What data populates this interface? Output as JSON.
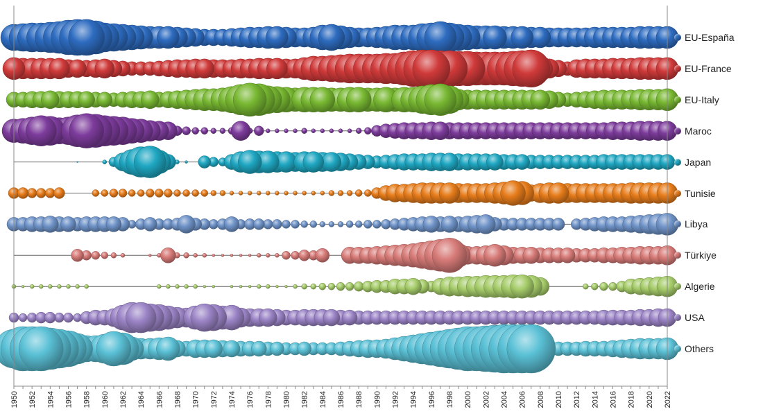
{
  "chart_data": {
    "type": "scatter",
    "subtype": "bubble-strip",
    "title": "",
    "xlabel": "",
    "ylabel": "",
    "xlim": [
      1950,
      2022
    ],
    "x_tick_labels": [
      "1950",
      "1952",
      "1954",
      "1956",
      "1958",
      "1960",
      "1962",
      "1964",
      "1966",
      "1968",
      "1970",
      "1972",
      "1974",
      "1976",
      "1978",
      "1980",
      "1982",
      "1984",
      "1986",
      "1988",
      "1990",
      "1992",
      "1994",
      "1996",
      "1998",
      "2000",
      "2002",
      "2004",
      "2006",
      "2008",
      "2010",
      "2012",
      "2014",
      "2016",
      "2018",
      "2020",
      "2022"
    ],
    "legend_position": "right",
    "grid": false,
    "years": [
      1950,
      1951,
      1952,
      1953,
      1954,
      1955,
      1956,
      1957,
      1958,
      1959,
      1960,
      1961,
      1962,
      1963,
      1964,
      1965,
      1966,
      1967,
      1968,
      1969,
      1970,
      1971,
      1972,
      1973,
      1974,
      1975,
      1976,
      1977,
      1978,
      1979,
      1980,
      1981,
      1982,
      1983,
      1984,
      1985,
      1986,
      1987,
      1988,
      1989,
      1990,
      1991,
      1992,
      1993,
      1994,
      1995,
      1996,
      1997,
      1998,
      1999,
      2000,
      2001,
      2002,
      2003,
      2004,
      2005,
      2006,
      2007,
      2008,
      2009,
      2010,
      2011,
      2012,
      2013,
      2014,
      2015,
      2016,
      2017,
      2018,
      2019,
      2020,
      2021,
      2022
    ],
    "series": [
      {
        "name": "EU-España",
        "color": "#2e6cc0",
        "values": [
          19,
          20,
          21,
          21,
          22,
          23,
          25,
          26,
          26,
          24,
          21,
          20,
          19,
          18,
          17,
          16,
          16,
          16,
          15,
          14,
          13,
          12,
          12,
          12,
          13,
          14,
          15,
          15,
          16,
          16,
          15,
          14,
          14,
          15,
          18,
          19,
          17,
          15,
          14,
          14,
          15,
          16,
          18,
          18,
          18,
          20,
          21,
          23,
          21,
          19,
          18,
          17,
          17,
          17,
          16,
          16,
          16,
          15,
          15,
          14,
          14,
          14,
          14,
          14,
          15,
          15,
          15,
          15,
          15,
          16,
          16,
          16,
          16
        ]
      },
      {
        "name": "EU-France",
        "color": "#d03a3a",
        "values": [
          16,
          15,
          15,
          15,
          15,
          15,
          13,
          13,
          12,
          13,
          14,
          12,
          11,
          10,
          10,
          10,
          11,
          12,
          13,
          13,
          14,
          14,
          13,
          13,
          13,
          14,
          14,
          15,
          15,
          15,
          14,
          14,
          16,
          18,
          18,
          19,
          20,
          21,
          21,
          21,
          21,
          22,
          22,
          24,
          26,
          27,
          27,
          26,
          26,
          25,
          25,
          24,
          24,
          24,
          24,
          25,
          26,
          27,
          18,
          14,
          12,
          10,
          13,
          14,
          14,
          14,
          15,
          15,
          15,
          16,
          16,
          16,
          16
        ]
      },
      {
        "name": "EU-Italy",
        "color": "#78b832",
        "values": [
          11,
          11,
          12,
          12,
          13,
          12,
          12,
          12,
          12,
          11,
          11,
          10,
          11,
          12,
          12,
          13,
          11,
          12,
          13,
          14,
          15,
          16,
          16,
          17,
          19,
          22,
          24,
          23,
          20,
          19,
          18,
          17,
          18,
          18,
          18,
          17,
          17,
          18,
          18,
          17,
          17,
          18,
          17,
          18,
          18,
          20,
          22,
          23,
          20,
          15,
          14,
          14,
          14,
          14,
          14,
          14,
          14,
          14,
          14,
          13,
          11,
          10,
          11,
          12,
          13,
          14,
          14,
          14,
          14,
          15,
          15,
          15,
          16
        ]
      },
      {
        "name": "Maroc",
        "color": "#7d3c9c",
        "values": [
          17,
          18,
          20,
          22,
          21,
          19,
          20,
          23,
          25,
          24,
          22,
          21,
          20,
          18,
          17,
          15,
          14,
          13,
          7,
          6,
          5,
          5,
          4,
          4,
          5,
          14,
          4,
          7,
          3,
          3,
          3,
          3,
          4,
          3,
          3,
          3,
          3,
          3,
          4,
          5,
          8,
          10,
          11,
          12,
          12,
          12,
          13,
          13,
          12,
          12,
          12,
          12,
          12,
          12,
          12,
          12,
          12,
          12,
          12,
          12,
          12,
          12,
          12,
          12,
          12,
          12,
          13,
          13,
          13,
          14,
          14,
          14,
          14
        ]
      },
      {
        "name": "Japan",
        "color": "#1fa7c2",
        "values": [
          0,
          0,
          0,
          0,
          0,
          0,
          0,
          1,
          0,
          0,
          3,
          7,
          13,
          18,
          22,
          23,
          17,
          11,
          3,
          2,
          0,
          9,
          7,
          6,
          11,
          15,
          17,
          16,
          16,
          15,
          15,
          14,
          15,
          15,
          14,
          14,
          13,
          12,
          11,
          10,
          9,
          10,
          11,
          12,
          12,
          12,
          13,
          13,
          13,
          12,
          12,
          12,
          12,
          12,
          11,
          11,
          11,
          10,
          10,
          10,
          10,
          10,
          10,
          10,
          10,
          11,
          11,
          11,
          11,
          11,
          11,
          11,
          11
        ]
      },
      {
        "name": "Tunisie",
        "color": "#e67c1b",
        "values": [
          8,
          8,
          7,
          7,
          7,
          8,
          0,
          0,
          0,
          5,
          5,
          6,
          6,
          5,
          5,
          6,
          6,
          6,
          5,
          5,
          5,
          5,
          4,
          4,
          3,
          3,
          3,
          3,
          3,
          3,
          3,
          3,
          3,
          3,
          3,
          4,
          4,
          4,
          5,
          5,
          8,
          11,
          13,
          13,
          14,
          15,
          15,
          15,
          15,
          14,
          14,
          14,
          14,
          15,
          16,
          18,
          17,
          12,
          14,
          15,
          15,
          14,
          14,
          14,
          14,
          14,
          14,
          14,
          15,
          15,
          15,
          15,
          15
        ]
      },
      {
        "name": "Libya",
        "color": "#6f93c8",
        "values": [
          10,
          10,
          11,
          11,
          12,
          11,
          11,
          10,
          11,
          11,
          11,
          11,
          10,
          6,
          8,
          10,
          8,
          8,
          9,
          13,
          9,
          8,
          7,
          8,
          11,
          7,
          8,
          8,
          7,
          7,
          6,
          6,
          5,
          5,
          4,
          4,
          4,
          5,
          5,
          6,
          6,
          7,
          8,
          9,
          10,
          11,
          12,
          11,
          12,
          11,
          12,
          13,
          14,
          10,
          9,
          9,
          9,
          9,
          9,
          9,
          9,
          0,
          8,
          9,
          10,
          11,
          11,
          11,
          12,
          13,
          14,
          15,
          16
        ]
      },
      {
        "name": "Türkiye",
        "color": "#d77b78",
        "values": [
          0,
          0,
          0,
          0,
          0,
          0,
          0,
          9,
          7,
          6,
          5,
          4,
          3,
          0,
          0,
          2,
          3,
          11,
          4,
          4,
          3,
          3,
          2,
          2,
          2,
          2,
          2,
          3,
          3,
          3,
          6,
          6,
          8,
          7,
          10,
          0,
          0,
          12,
          12,
          12,
          13,
          14,
          15,
          16,
          17,
          19,
          21,
          23,
          25,
          17,
          13,
          13,
          14,
          16,
          14,
          12,
          12,
          12,
          11,
          11,
          11,
          11,
          10,
          10,
          10,
          11,
          11,
          12,
          12,
          13,
          13,
          13,
          14
        ]
      },
      {
        "name": "Algerie",
        "color": "#a6cc6a",
        "values": [
          3,
          2,
          3,
          3,
          3,
          3,
          3,
          3,
          3,
          0,
          0,
          0,
          0,
          0,
          0,
          0,
          3,
          3,
          3,
          3,
          3,
          2,
          2,
          0,
          2,
          2,
          2,
          3,
          3,
          2,
          2,
          3,
          4,
          4,
          5,
          5,
          6,
          6,
          7,
          8,
          9,
          9,
          11,
          11,
          12,
          10,
          8,
          12,
          14,
          14,
          15,
          15,
          16,
          16,
          16,
          17,
          17,
          16,
          13,
          0,
          0,
          0,
          0,
          4,
          5,
          6,
          6,
          8,
          11,
          12,
          13,
          14,
          15
        ]
      },
      {
        "name": "USA",
        "color": "#9b84c6",
        "values": [
          7,
          6,
          7,
          8,
          8,
          7,
          7,
          6,
          9,
          11,
          11,
          13,
          18,
          22,
          22,
          20,
          19,
          17,
          15,
          14,
          17,
          20,
          19,
          17,
          18,
          14,
          13,
          13,
          13,
          12,
          11,
          11,
          12,
          12,
          12,
          12,
          11,
          11,
          10,
          10,
          10,
          10,
          10,
          10,
          10,
          10,
          10,
          10,
          10,
          10,
          10,
          10,
          10,
          10,
          10,
          10,
          10,
          10,
          10,
          10,
          10,
          10,
          10,
          10,
          10,
          11,
          11,
          11,
          11,
          12,
          12,
          13,
          13
        ]
      },
      {
        "name": "Others",
        "color": "#5bc1d6",
        "values": [
          28,
          32,
          32,
          32,
          30,
          28,
          26,
          22,
          19,
          19,
          21,
          25,
          23,
          17,
          15,
          15,
          16,
          17,
          12,
          11,
          13,
          13,
          13,
          12,
          12,
          11,
          11,
          11,
          10,
          10,
          9,
          9,
          10,
          9,
          9,
          9,
          10,
          11,
          12,
          13,
          13,
          14,
          16,
          18,
          20,
          22,
          24,
          26,
          28,
          30,
          32,
          32,
          33,
          34,
          35,
          35,
          35,
          35,
          11,
          10,
          10,
          10,
          10,
          11,
          11,
          11,
          12,
          13,
          14,
          15,
          15,
          15,
          16
        ]
      }
    ]
  }
}
